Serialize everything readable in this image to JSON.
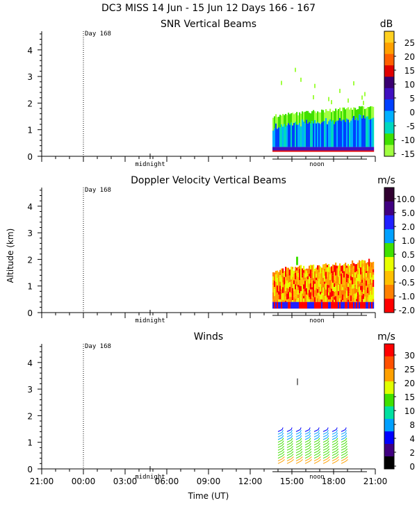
{
  "chart_data": {
    "type": "heatmap",
    "title": "DC3 MISS  14 Jun - 15 Jun 12 Days 166 - 167",
    "xlabel": "Time (UT)",
    "ylabel": "Altitude (km)",
    "x_ticks": [
      "21:00",
      "00:00",
      "03:00",
      "06:00",
      "09:00",
      "12:00",
      "15:00",
      "18:00",
      "21:00"
    ],
    "x_hours": [
      21,
      24,
      27,
      30,
      33,
      36,
      39,
      42,
      45
    ],
    "xlim": [
      21,
      45
    ],
    "ylim": [
      0,
      4.7
    ],
    "y_ticks": [
      "0",
      "1",
      "2",
      "3",
      "4"
    ],
    "y_values": [
      0,
      1,
      2,
      3,
      4
    ],
    "markers": {
      "day_label": "Day 168",
      "day_hour": 24,
      "midnight": "midnight",
      "midnight_hour": 28.8,
      "noon": "noon",
      "noon_hour": 40.8,
      "data_start_hour": 37.6
    },
    "panels": [
      {
        "title": "SNR Vertical Beams",
        "unit": "dB",
        "colorbar": [
          "25",
          "20",
          "15",
          "10",
          "5",
          "0",
          "-5",
          "-10",
          "-15"
        ],
        "colors": [
          "#ffd020",
          "#ffa000",
          "#ff6000",
          "#e00000",
          "#3a0070",
          "#4010c0",
          "#0040ff",
          "#00b0ff",
          "#00d8c0",
          "#40e000",
          "#a0ff40"
        ]
      },
      {
        "title": "Doppler Velocity Vertical Beams",
        "unit": "m/s",
        "colorbar": [
          "10.0",
          "5.0",
          "2.0",
          "1.0",
          "0.5",
          "0.0",
          "-0.5",
          "-1.0",
          "-2.0"
        ],
        "colors": [
          "#300030",
          "#400080",
          "#2020ff",
          "#00a0ff",
          "#40e000",
          "#e8ff00",
          "#ffc000",
          "#ff8000",
          "#ff0000"
        ]
      },
      {
        "title": "Winds",
        "unit": "m/s",
        "colorbar": [
          "30",
          "25",
          "20",
          "15",
          "10",
          "8",
          "4",
          "2",
          "0"
        ],
        "colors": [
          "#ff0000",
          "#ff5000",
          "#ffa000",
          "#e0ff00",
          "#40e000",
          "#00e0a0",
          "#00a0ff",
          "#0000ff",
          "#400080",
          "#000000"
        ]
      }
    ]
  }
}
